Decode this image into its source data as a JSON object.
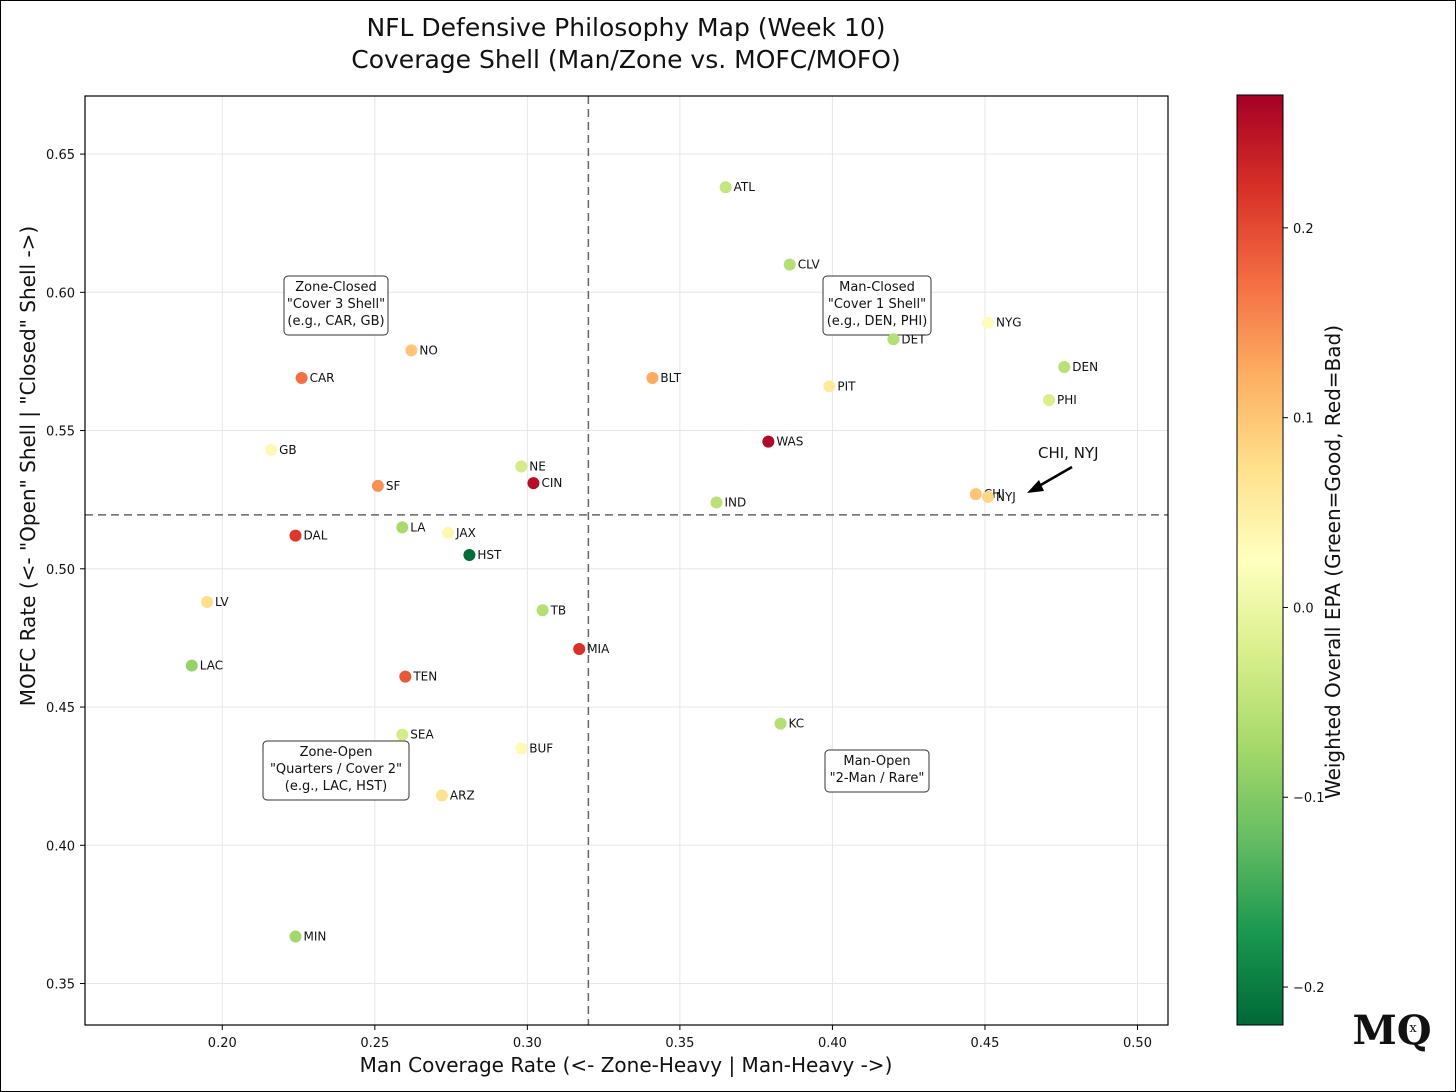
{
  "chart_data": {
    "type": "scatter",
    "title_lines": [
      "NFL Defensive Philosophy Map (Week 10)",
      "Coverage Shell (Man/Zone vs. MOFC/MOFO)"
    ],
    "xlabel": "Man Coverage Rate (<- Zone-Heavy | Man-Heavy ->)",
    "ylabel": "MOFC Rate (<- \"Open\" Shell | \"Closed\" Shell ->)",
    "xlim": [
      0.155,
      0.51
    ],
    "ylim": [
      0.335,
      0.671
    ],
    "x_ticks": [
      0.2,
      0.25,
      0.3,
      0.35,
      0.4,
      0.45,
      0.5
    ],
    "x_tick_labels": [
      "0.20",
      "0.25",
      "0.30",
      "0.35",
      "0.40",
      "0.45",
      "0.50"
    ],
    "y_ticks": [
      0.35,
      0.4,
      0.45,
      0.5,
      0.55,
      0.6,
      0.65
    ],
    "y_tick_labels": [
      "0.35",
      "0.40",
      "0.45",
      "0.50",
      "0.55",
      "0.60",
      "0.65"
    ],
    "grid": true,
    "mean_x": 0.32,
    "mean_y": 0.5195,
    "color_scale": {
      "label": "Weighted Overall EPA (Green=Good, Red=Bad)",
      "min": -0.22,
      "max": 0.27,
      "ticks": [
        -0.2,
        -0.1,
        0.0,
        0.1,
        0.2
      ],
      "tick_labels": [
        "−0.2",
        "−0.1",
        "0.0",
        "0.1",
        "0.2"
      ],
      "stops": [
        "#006837",
        "#1a9850",
        "#66bd63",
        "#a6d96a",
        "#d9ef8b",
        "#ffffbf",
        "#fee08b",
        "#fdae61",
        "#f46d43",
        "#d73027",
        "#a50026"
      ]
    },
    "points": [
      {
        "team": "ATL",
        "x": 0.365,
        "y": 0.638,
        "epa": -0.045
      },
      {
        "team": "CLV",
        "x": 0.386,
        "y": 0.61,
        "epa": -0.06
      },
      {
        "team": "NYG",
        "x": 0.451,
        "y": 0.589,
        "epa": 0.03
      },
      {
        "team": "DET",
        "x": 0.42,
        "y": 0.583,
        "epa": -0.06
      },
      {
        "team": "DEN",
        "x": 0.476,
        "y": 0.573,
        "epa": -0.055
      },
      {
        "team": "PHI",
        "x": 0.471,
        "y": 0.561,
        "epa": -0.025
      },
      {
        "team": "PIT",
        "x": 0.399,
        "y": 0.566,
        "epa": 0.06
      },
      {
        "team": "BLT",
        "x": 0.341,
        "y": 0.569,
        "epa": 0.125
      },
      {
        "team": "WAS",
        "x": 0.379,
        "y": 0.546,
        "epa": 0.26
      },
      {
        "team": "NO",
        "x": 0.262,
        "y": 0.579,
        "epa": 0.1
      },
      {
        "team": "CAR",
        "x": 0.226,
        "y": 0.569,
        "epa": 0.17
      },
      {
        "team": "GB",
        "x": 0.216,
        "y": 0.543,
        "epa": 0.035
      },
      {
        "team": "NE",
        "x": 0.298,
        "y": 0.537,
        "epa": -0.03
      },
      {
        "team": "CIN",
        "x": 0.302,
        "y": 0.531,
        "epa": 0.255
      },
      {
        "team": "SF",
        "x": 0.251,
        "y": 0.53,
        "epa": 0.145
      },
      {
        "team": "IND",
        "x": 0.362,
        "y": 0.524,
        "epa": -0.055
      },
      {
        "team": "CHI",
        "x": 0.447,
        "y": 0.527,
        "epa": 0.1
      },
      {
        "team": "NYJ",
        "x": 0.451,
        "y": 0.526,
        "epa": 0.085
      },
      {
        "team": "DAL",
        "x": 0.224,
        "y": 0.512,
        "epa": 0.215
      },
      {
        "team": "LA",
        "x": 0.259,
        "y": 0.515,
        "epa": -0.07
      },
      {
        "team": "JAX",
        "x": 0.274,
        "y": 0.513,
        "epa": 0.04
      },
      {
        "team": "HST",
        "x": 0.281,
        "y": 0.505,
        "epa": -0.215
      },
      {
        "team": "LV",
        "x": 0.195,
        "y": 0.488,
        "epa": 0.075
      },
      {
        "team": "TB",
        "x": 0.305,
        "y": 0.485,
        "epa": -0.06
      },
      {
        "team": "MIA",
        "x": 0.317,
        "y": 0.471,
        "epa": 0.22
      },
      {
        "team": "LAC",
        "x": 0.19,
        "y": 0.465,
        "epa": -0.085
      },
      {
        "team": "TEN",
        "x": 0.26,
        "y": 0.461,
        "epa": 0.19
      },
      {
        "team": "KC",
        "x": 0.383,
        "y": 0.444,
        "epa": -0.06
      },
      {
        "team": "SEA",
        "x": 0.259,
        "y": 0.44,
        "epa": -0.03
      },
      {
        "team": "BUF",
        "x": 0.298,
        "y": 0.435,
        "epa": 0.035
      },
      {
        "team": "ARZ",
        "x": 0.272,
        "y": 0.418,
        "epa": 0.07
      },
      {
        "team": "MIN",
        "x": 0.224,
        "y": 0.367,
        "epa": -0.075
      }
    ],
    "quadrant_boxes": [
      {
        "id": "zone-closed",
        "lines": [
          "Zone-Closed",
          "\"Cover 3 Shell\"",
          "(e.g., CAR, GB)"
        ]
      },
      {
        "id": "man-closed",
        "lines": [
          "Man-Closed",
          "\"Cover 1 Shell\"",
          "(e.g., DEN, PHI)"
        ]
      },
      {
        "id": "zone-open",
        "lines": [
          "Zone-Open",
          "\"Quarters / Cover 2\"",
          "(e.g., LAC, HST)"
        ]
      },
      {
        "id": "man-open",
        "lines": [
          "Man-Open",
          "\"2-Man / Rare\""
        ]
      }
    ],
    "annotation": {
      "text": "CHI, NYJ",
      "target": [
        "CHI",
        "NYJ"
      ]
    }
  },
  "logo": {
    "text": "MQ",
    "mark": "x"
  }
}
